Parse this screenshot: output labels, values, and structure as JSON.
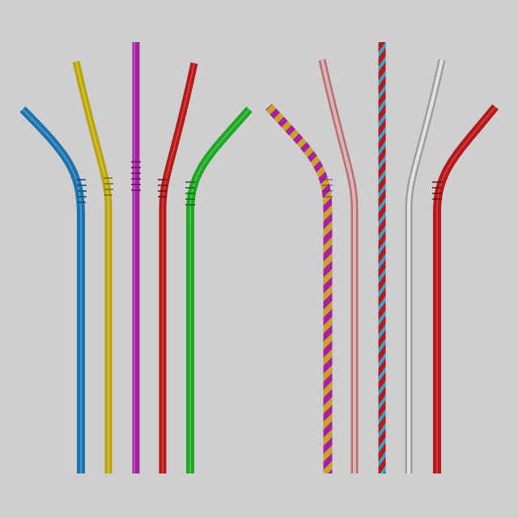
{
  "background": "#cfcfcf",
  "straws": [
    {
      "id": "blue-bent",
      "shape": "bent-left",
      "pattern": "solid",
      "colors": [
        "#1f73ad"
      ]
    },
    {
      "id": "yellow-bent",
      "shape": "bent-left-steep",
      "pattern": "solid",
      "colors": [
        "#b9a413"
      ]
    },
    {
      "id": "magenta-straight",
      "shape": "straight",
      "pattern": "solid",
      "colors": [
        "#a2239f"
      ]
    },
    {
      "id": "red-bent",
      "shape": "bent-right-steep",
      "pattern": "solid",
      "colors": [
        "#b31b18"
      ]
    },
    {
      "id": "green-bent",
      "shape": "bent-right",
      "pattern": "solid",
      "colors": [
        "#1fa623"
      ]
    },
    {
      "id": "striped-bent",
      "shape": "bent-left",
      "pattern": "diagonal-stripes",
      "colors": [
        "#a81fa4",
        "#c7a428"
      ]
    },
    {
      "id": "rose-bent",
      "shape": "bent-left-steep",
      "pattern": "outline",
      "colors": [
        "#b87070"
      ]
    },
    {
      "id": "twisted-straight",
      "shape": "straight",
      "pattern": "twist",
      "colors": [
        "#b51b1b",
        "#3e9fcd"
      ]
    },
    {
      "id": "silver-bent",
      "shape": "bent-right-steep",
      "pattern": "outline",
      "colors": [
        "#b1b1b1"
      ]
    },
    {
      "id": "red-bent-2",
      "shape": "bent-right",
      "pattern": "solid",
      "colors": [
        "#b51818"
      ]
    }
  ]
}
